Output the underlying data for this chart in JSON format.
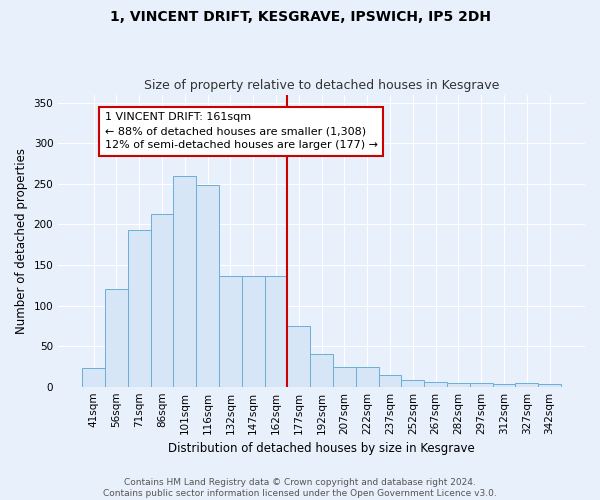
{
  "title": "1, VINCENT DRIFT, KESGRAVE, IPSWICH, IP5 2DH",
  "subtitle": "Size of property relative to detached houses in Kesgrave",
  "xlabel": "Distribution of detached houses by size in Kesgrave",
  "ylabel": "Number of detached properties",
  "categories": [
    "41sqm",
    "56sqm",
    "71sqm",
    "86sqm",
    "101sqm",
    "116sqm",
    "132sqm",
    "147sqm",
    "162sqm",
    "177sqm",
    "192sqm",
    "207sqm",
    "222sqm",
    "237sqm",
    "252sqm",
    "267sqm",
    "282sqm",
    "297sqm",
    "312sqm",
    "327sqm",
    "342sqm"
  ],
  "values": [
    23,
    120,
    193,
    213,
    260,
    248,
    136,
    136,
    136,
    75,
    40,
    24,
    24,
    14,
    8,
    6,
    5,
    4,
    3,
    4,
    3
  ],
  "bar_color": "#d6e6f7",
  "bar_edge_color": "#6aaed6",
  "annotation_text_line1": "1 VINCENT DRIFT: 161sqm",
  "annotation_text_line2": "← 88% of detached houses are smaller (1,308)",
  "annotation_text_line3": "12% of semi-detached houses are larger (177) →",
  "annotation_box_facecolor": "#ffffff",
  "annotation_box_edgecolor": "#cc0000",
  "vline_color": "#cc0000",
  "ylim": [
    0,
    360
  ],
  "yticks": [
    0,
    50,
    100,
    150,
    200,
    250,
    300,
    350
  ],
  "background_color": "#e8f0fb",
  "grid_color": "#ffffff",
  "footer_line1": "Contains HM Land Registry data © Crown copyright and database right 2024.",
  "footer_line2": "Contains public sector information licensed under the Open Government Licence v3.0.",
  "title_fontsize": 10,
  "subtitle_fontsize": 9,
  "axis_label_fontsize": 8.5,
  "tick_fontsize": 7.5,
  "annotation_fontsize": 8,
  "footer_fontsize": 6.5
}
